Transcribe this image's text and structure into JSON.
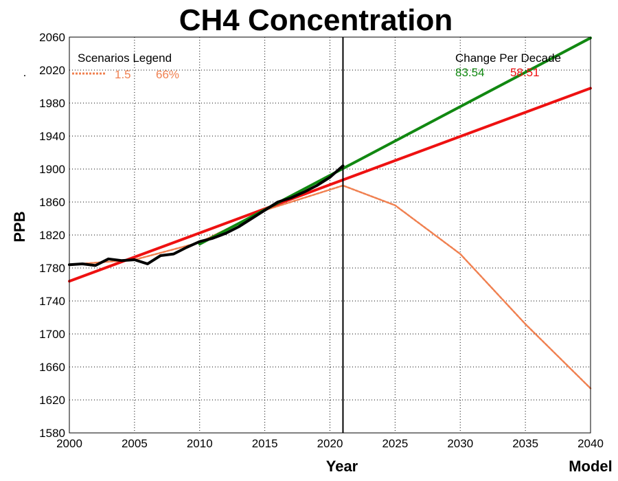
{
  "chart_data": {
    "type": "line",
    "title": "CH4 Concentration",
    "xlabel": "Year",
    "ylabel": "PPB",
    "corner_label": "Model",
    "stray_mark": ".",
    "xlim": [
      2000,
      2040
    ],
    "ylim": [
      1580,
      2060
    ],
    "x_ticks": [
      2000,
      2005,
      2010,
      2015,
      2020,
      2025,
      2030,
      2035,
      2040
    ],
    "y_ticks": [
      1580,
      1620,
      1660,
      1700,
      1740,
      1780,
      1820,
      1860,
      1900,
      1940,
      1980,
      2020,
      2060
    ],
    "grid": true,
    "current_year_marker": 2021,
    "legend_left": {
      "title": "Scenarios Legend",
      "label": "1.5",
      "percent": "66%",
      "color": "#F08050"
    },
    "legend_right": {
      "title": "Change Per Decade",
      "values": [
        {
          "value": "83.54",
          "color": "#118811"
        },
        {
          "value": "58.51",
          "color": "#EE1111"
        }
      ]
    },
    "series": [
      {
        "style": "dotted",
        "color": "#F08050",
        "x": [
          2000,
          2005,
          2010,
          2015,
          2021,
          2025,
          2030,
          2035,
          2040
        ],
        "y": [
          1784,
          1790,
          1811,
          1850,
          1880,
          1856,
          1797,
          1712,
          1634
        ]
      },
      {
        "style": "thick",
        "color": "#EE1111",
        "x": [
          2000,
          2040
        ],
        "y": [
          1764,
          1998
        ]
      },
      {
        "style": "thick",
        "color": "#118811",
        "x": [
          2010,
          2040
        ],
        "y": [
          1809,
          2059
        ]
      },
      {
        "style": "observed",
        "color": "#000000",
        "x": [
          2000,
          2001,
          2002,
          2003,
          2004,
          2005,
          2006,
          2007,
          2008,
          2009,
          2010,
          2011,
          2012,
          2013,
          2014,
          2015,
          2016,
          2017,
          2018,
          2019,
          2020,
          2021
        ],
        "y": [
          1784,
          1785,
          1783,
          1791,
          1789,
          1790,
          1785,
          1795,
          1797,
          1805,
          1812,
          1816,
          1822,
          1830,
          1840,
          1850,
          1860,
          1865,
          1872,
          1880,
          1890,
          1904
        ]
      }
    ]
  }
}
